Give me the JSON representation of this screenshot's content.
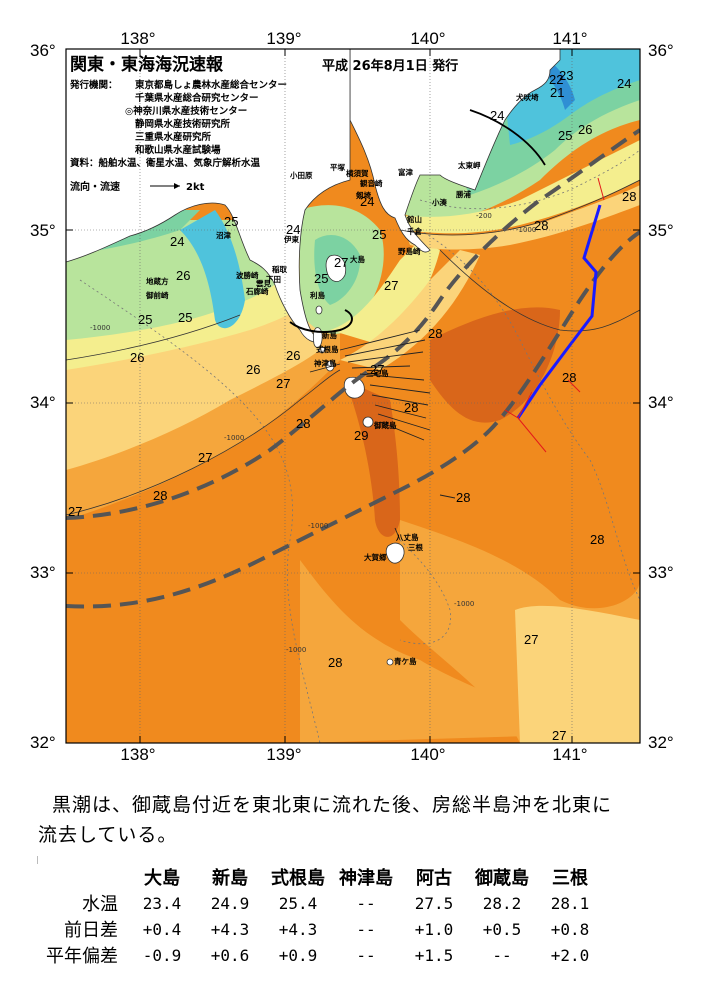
{
  "map": {
    "title": "関東・東海海況速報",
    "issue_date": "平成 26年8月1日 発行",
    "agencies_label": "発行機関：",
    "agencies": [
      "東京都島しょ農林水産総合センター",
      "千葉県水産総合研究センター",
      "◎神奈川県水産技術センター",
      "静岡県水産技術研究所",
      "三重県水産研究所",
      "和歌山県水産試験場"
    ],
    "sources": "資料：船舶水温、衛星水温、気象庁解析水温",
    "flow_legend": "流向・流速",
    "flow_unit": "2kt",
    "lon_labels": [
      "138°",
      "139°",
      "140°",
      "141°"
    ],
    "lat_labels": [
      "36°",
      "35°",
      "34°",
      "33°",
      "32°"
    ],
    "place_names": [
      "犬吠埼",
      "太東岬",
      "勝浦",
      "小湊",
      "館山",
      "千倉",
      "野島崎",
      "平塚",
      "横須賀",
      "観音崎",
      "富津",
      "剱埼",
      "小田原",
      "大島",
      "伊東",
      "利島",
      "新島",
      "式根島",
      "神津島",
      "三宅島",
      "御蔵島",
      "八丈島",
      "大賀郷",
      "三根",
      "青ケ島",
      "稲取",
      "下田",
      "石廊崎",
      "雲見",
      "波勝崎",
      "御前崎",
      "沼津",
      "地蔵方"
    ],
    "isotherm_labels": [
      "22",
      "23",
      "21",
      "24",
      "25",
      "26",
      "27",
      "28",
      "29"
    ],
    "depth_labels": [
      "-200",
      "-1000"
    ]
  },
  "colors": {
    "ocean_28": "#f08a1e",
    "ocean_warm": "#f5a63c",
    "ocean_27": "#fbd47a",
    "ocean_26": "#f4ee8e",
    "ocean_25": "#b8e49c",
    "ocean_24": "#7cd2a2",
    "ocean_23": "#4fc3dc",
    "kuroshio_axis": "#555555",
    "track": "#1a1aff"
  },
  "summary": {
    "line1": "黒潮は、御蔵島付近を東北東に流れた後、房総半島沖を北東に",
    "line2": "流去している。"
  },
  "table": {
    "columns": [
      "大島",
      "新島",
      "式根島",
      "神津島",
      "阿古",
      "御蔵島",
      "三根"
    ],
    "rows": [
      {
        "label": "水温",
        "values": [
          "23.4",
          "24.9",
          "25.4",
          "--",
          "27.5",
          "28.2",
          "28.1"
        ]
      },
      {
        "label": "前日差",
        "values": [
          "+0.4",
          "+4.3",
          "+4.3",
          "--",
          "+1.0",
          "+0.5",
          "+0.8"
        ]
      },
      {
        "label": "平年偏差",
        "values": [
          "-0.9",
          "+0.6",
          "+0.9",
          "--",
          "+1.5",
          "--",
          "+2.0"
        ]
      }
    ]
  }
}
